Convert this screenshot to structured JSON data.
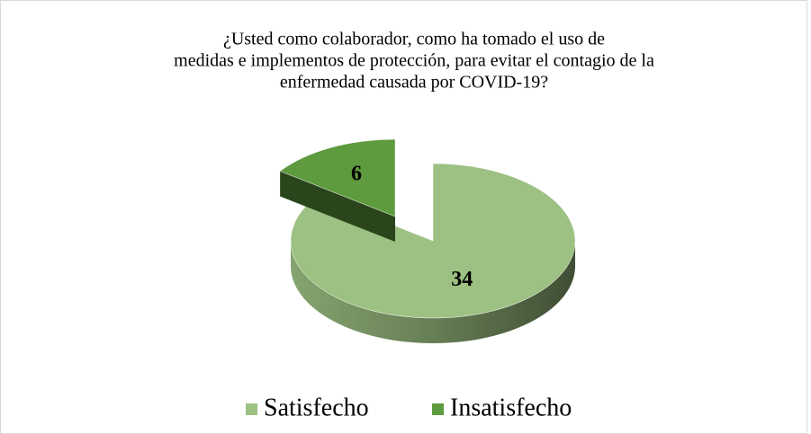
{
  "chart_data": {
    "type": "pie3d",
    "title": [
      "¿Usted como colaborador, como ha tomado el uso de",
      "medidas e implementos de protección, para evitar el contagio de la",
      "enfermedad causada por COVID-19?"
    ],
    "categories": [
      "Satisfecho",
      "Insatisfecho"
    ],
    "values": [
      34,
      6
    ],
    "colors": [
      "#9dc183",
      "#5e9a3e"
    ],
    "exploded": [
      false,
      true
    ],
    "legend": "bottom"
  }
}
